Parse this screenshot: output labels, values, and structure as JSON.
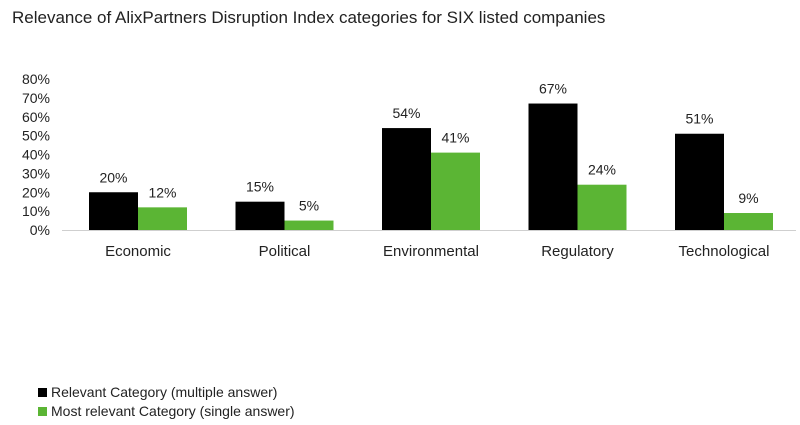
{
  "chart_data": {
    "type": "bar",
    "title": "Relevance of AlixPartners Disruption Index categories for SIX listed companies",
    "xlabel": "",
    "ylabel": "",
    "ylim": [
      0,
      80
    ],
    "yticks": [
      "0%",
      "10%",
      "20%",
      "30%",
      "40%",
      "50%",
      "60%",
      "70%",
      "80%"
    ],
    "grid": false,
    "categories": [
      "Economic",
      "Political",
      "Environmental",
      "Regulatory",
      "Technological"
    ],
    "series": [
      {
        "name": "Relevant Category (multiple answer)",
        "color": "#000000",
        "values": [
          20,
          15,
          54,
          67,
          51
        ],
        "labels": [
          "20%",
          "15%",
          "54%",
          "67%",
          "51%"
        ]
      },
      {
        "name": "Most relevant Category (single answer)",
        "color": "#5bb534",
        "values": [
          12,
          5,
          41,
          24,
          9
        ],
        "labels": [
          "12%",
          "5%",
          "41%",
          "24%",
          "9%"
        ]
      }
    ],
    "legend_position": "bottom-left"
  }
}
